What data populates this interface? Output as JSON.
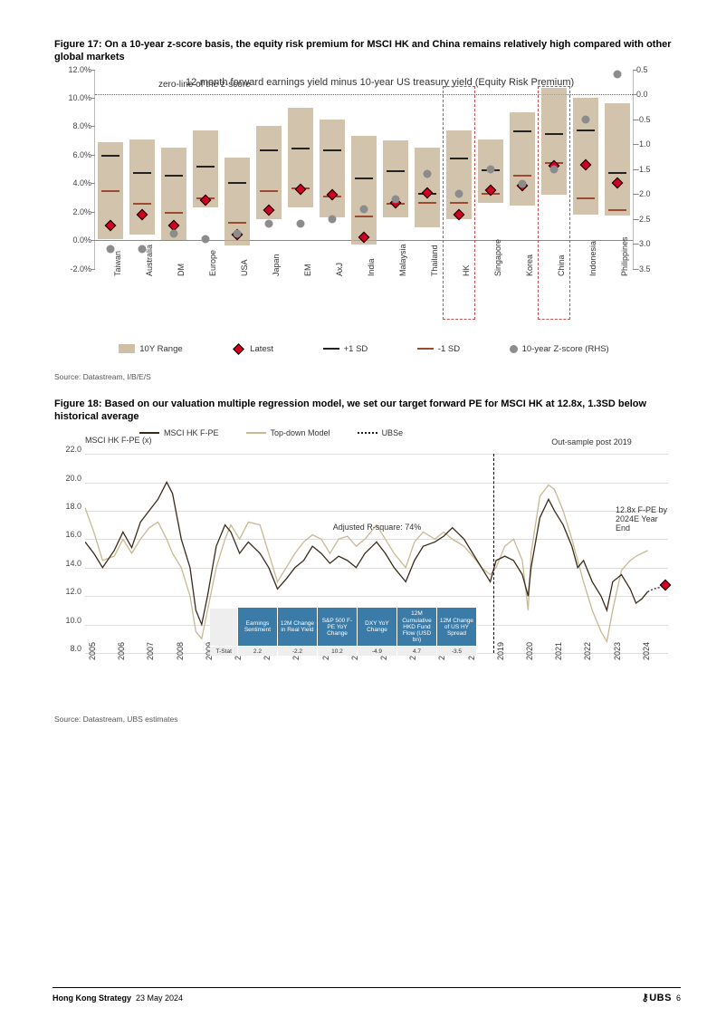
{
  "figure17": {
    "title": "Figure 17: On a 10-year z-score basis, the equity risk premium for MSCI HK and China remains relatively high compared with other global markets",
    "chart_title": "12-month forward earnings yield minus 10-year US treasury yield (Equity Risk Premium)",
    "zero_label": "zero-line of the z-score",
    "y_left": {
      "min": -2,
      "max": 12,
      "step": 2,
      "suffix": "%"
    },
    "y_right": {
      "min": -3.5,
      "max": 0.5,
      "step": 0.5,
      "zero_at_left_pct": 8.5
    },
    "colors": {
      "range_bar": "#c3af91",
      "latest": "#d00020",
      "sd_plus": "#222222",
      "sd_minus": "#9c4a30",
      "zdot": "#8c8c8c",
      "highlight_box": "#c0504d"
    },
    "legend": {
      "range": "10Y Range",
      "latest": "Latest",
      "sd_plus": "+1 SD",
      "sd_minus": "-1 SD",
      "zscore": "10-year Z-score (RHS)"
    },
    "categories": [
      {
        "label": "Taiwan",
        "range": [
          0.1,
          6.9
        ],
        "sdp": 6.0,
        "sdm": 3.5,
        "latest": 1.0,
        "z": -3.1,
        "highlight": false
      },
      {
        "label": "Australia",
        "range": [
          0.4,
          7.1
        ],
        "sdp": 4.8,
        "sdm": 2.6,
        "latest": 1.8,
        "z": -3.1,
        "highlight": false
      },
      {
        "label": "DM",
        "range": [
          0.0,
          6.5
        ],
        "sdp": 4.6,
        "sdm": 2.0,
        "latest": 1.0,
        "z": -2.8,
        "highlight": false
      },
      {
        "label": "Europe",
        "range": [
          2.3,
          7.7
        ],
        "sdp": 5.2,
        "sdm": 3.0,
        "latest": 2.8,
        "z": -2.9,
        "highlight": false
      },
      {
        "label": "USA",
        "range": [
          -0.4,
          5.8
        ],
        "sdp": 4.1,
        "sdm": 1.3,
        "latest": 0.4,
        "z": -2.8,
        "highlight": false
      },
      {
        "label": "Japan",
        "range": [
          1.5,
          8.0
        ],
        "sdp": 6.4,
        "sdm": 3.5,
        "latest": 2.1,
        "z": -2.6,
        "highlight": false
      },
      {
        "label": "EM",
        "range": [
          2.3,
          9.3
        ],
        "sdp": 6.5,
        "sdm": 3.7,
        "latest": 3.6,
        "z": -2.6,
        "highlight": false
      },
      {
        "label": "AxJ",
        "range": [
          1.6,
          8.5
        ],
        "sdp": 6.4,
        "sdm": 3.1,
        "latest": 3.2,
        "z": -2.5,
        "highlight": false
      },
      {
        "label": "India",
        "range": [
          -0.3,
          7.3
        ],
        "sdp": 4.4,
        "sdm": 1.7,
        "latest": 0.2,
        "z": -2.3,
        "highlight": false
      },
      {
        "label": "Malaysia",
        "range": [
          1.6,
          7.0
        ],
        "sdp": 4.9,
        "sdm": 2.6,
        "latest": 2.6,
        "z": -2.1,
        "highlight": false
      },
      {
        "label": "Thailand",
        "range": [
          0.9,
          6.5
        ],
        "sdp": 3.3,
        "sdm": 2.7,
        "latest": 3.3,
        "z": -1.6,
        "highlight": false
      },
      {
        "label": "HK",
        "range": [
          1.5,
          7.7
        ],
        "sdp": 5.8,
        "sdm": 2.7,
        "latest": 1.8,
        "z": -2.0,
        "highlight": true
      },
      {
        "label": "Singapore",
        "range": [
          2.6,
          7.1
        ],
        "sdp": 5.0,
        "sdm": 3.3,
        "latest": 3.5,
        "z": -1.5,
        "highlight": false
      },
      {
        "label": "Korea",
        "range": [
          2.4,
          9.0
        ],
        "sdp": 7.7,
        "sdm": 4.6,
        "latest": 3.8,
        "z": -1.8,
        "highlight": false
      },
      {
        "label": "China",
        "range": [
          3.2,
          10.7
        ],
        "sdp": 7.5,
        "sdm": 5.5,
        "latest": 5.2,
        "z": -1.5,
        "highlight": true
      },
      {
        "label": "Indonesia",
        "range": [
          1.8,
          10.0
        ],
        "sdp": 7.8,
        "sdm": 3.0,
        "latest": 5.3,
        "z": -0.5,
        "highlight": false
      },
      {
        "label": "Philippines",
        "range": [
          1.7,
          9.6
        ],
        "sdp": 4.8,
        "sdm": 2.2,
        "latest": 4.0,
        "z": 0.4,
        "highlight": false
      }
    ],
    "source": "Source: Datastream, I/B/E/S"
  },
  "figure18": {
    "title": "Figure 18: Based on our valuation multiple regression model, we set our target forward PE for MSCI HK at 12.8x, 1.3SD below historical average",
    "y_title": "MSCI HK F-PE (x)",
    "legend": {
      "s1": "MSCI HK F-PE",
      "s2": "Top-down Model",
      "s3": "UBSe"
    },
    "y": {
      "min": 8,
      "max": 22,
      "step": 2
    },
    "x_years": [
      2005,
      2006,
      2007,
      2008,
      2009,
      2010,
      2011,
      2012,
      2013,
      2014,
      2015,
      2016,
      2017,
      2018,
      2019,
      2020,
      2021,
      2022,
      2023,
      2024
    ],
    "annot_rsq": "Adjusted R-square: 74%",
    "annot_out": "Out-sample post 2019",
    "annot_target": "12.8x F-PE by 2024E Year End",
    "vdash_year": 2019,
    "target_point": {
      "x_year": 2024.9,
      "y": 12.8
    },
    "colors": {
      "s1": "#3a2a1a",
      "s2": "#c9b993",
      "grid": "#dddddd",
      "target": "#d00020"
    },
    "series1": [
      [
        2005.0,
        15.8
      ],
      [
        2005.3,
        15.0
      ],
      [
        2005.6,
        14.0
      ],
      [
        2006.0,
        15.2
      ],
      [
        2006.3,
        16.5
      ],
      [
        2006.6,
        15.4
      ],
      [
        2006.9,
        17.2
      ],
      [
        2007.2,
        18.0
      ],
      [
        2007.5,
        18.8
      ],
      [
        2007.8,
        20.0
      ],
      [
        2008.0,
        19.2
      ],
      [
        2008.3,
        16.0
      ],
      [
        2008.6,
        14.0
      ],
      [
        2008.8,
        11.0
      ],
      [
        2009.0,
        10.0
      ],
      [
        2009.2,
        12.0
      ],
      [
        2009.5,
        15.5
      ],
      [
        2009.8,
        17.0
      ],
      [
        2010.0,
        16.5
      ],
      [
        2010.3,
        15.0
      ],
      [
        2010.6,
        15.8
      ],
      [
        2011.0,
        15.0
      ],
      [
        2011.3,
        14.0
      ],
      [
        2011.6,
        12.5
      ],
      [
        2011.9,
        13.2
      ],
      [
        2012.2,
        14.0
      ],
      [
        2012.5,
        14.5
      ],
      [
        2012.8,
        15.5
      ],
      [
        2013.1,
        15.0
      ],
      [
        2013.4,
        14.3
      ],
      [
        2013.7,
        14.8
      ],
      [
        2014.0,
        14.5
      ],
      [
        2014.3,
        14.0
      ],
      [
        2014.6,
        15.0
      ],
      [
        2015.0,
        15.8
      ],
      [
        2015.3,
        15.0
      ],
      [
        2015.6,
        14.0
      ],
      [
        2016.0,
        13.0
      ],
      [
        2016.3,
        14.5
      ],
      [
        2016.6,
        15.5
      ],
      [
        2017.0,
        15.8
      ],
      [
        2017.3,
        16.2
      ],
      [
        2017.6,
        16.8
      ],
      [
        2018.0,
        16.0
      ],
      [
        2018.3,
        15.0
      ],
      [
        2018.6,
        14.0
      ],
      [
        2018.9,
        13.0
      ],
      [
        2019.1,
        14.5
      ],
      [
        2019.4,
        14.8
      ],
      [
        2019.7,
        14.5
      ],
      [
        2020.0,
        13.5
      ],
      [
        2020.2,
        12.0
      ],
      [
        2020.3,
        14.0
      ],
      [
        2020.6,
        17.5
      ],
      [
        2020.9,
        18.8
      ],
      [
        2021.1,
        18.0
      ],
      [
        2021.4,
        17.0
      ],
      [
        2021.7,
        15.5
      ],
      [
        2021.9,
        14.0
      ],
      [
        2022.1,
        14.5
      ],
      [
        2022.4,
        13.0
      ],
      [
        2022.7,
        12.0
      ],
      [
        2022.9,
        11.0
      ],
      [
        2023.1,
        13.0
      ],
      [
        2023.4,
        13.5
      ],
      [
        2023.7,
        12.5
      ],
      [
        2023.9,
        11.5
      ],
      [
        2024.1,
        11.8
      ],
      [
        2024.3,
        12.3
      ]
    ],
    "series2": [
      [
        2005.0,
        18.2
      ],
      [
        2005.3,
        16.5
      ],
      [
        2005.6,
        14.5
      ],
      [
        2006.0,
        14.8
      ],
      [
        2006.3,
        16.0
      ],
      [
        2006.6,
        15.0
      ],
      [
        2006.9,
        16.0
      ],
      [
        2007.2,
        16.8
      ],
      [
        2007.5,
        17.2
      ],
      [
        2007.8,
        16.0
      ],
      [
        2008.0,
        15.0
      ],
      [
        2008.3,
        14.0
      ],
      [
        2008.6,
        12.0
      ],
      [
        2008.8,
        9.5
      ],
      [
        2009.0,
        9.0
      ],
      [
        2009.2,
        11.0
      ],
      [
        2009.5,
        14.0
      ],
      [
        2009.8,
        16.0
      ],
      [
        2010.0,
        17.0
      ],
      [
        2010.3,
        16.0
      ],
      [
        2010.6,
        17.2
      ],
      [
        2011.0,
        17.0
      ],
      [
        2011.3,
        15.0
      ],
      [
        2011.6,
        13.0
      ],
      [
        2011.9,
        14.0
      ],
      [
        2012.2,
        15.0
      ],
      [
        2012.5,
        15.8
      ],
      [
        2012.8,
        16.3
      ],
      [
        2013.1,
        16.0
      ],
      [
        2013.4,
        15.0
      ],
      [
        2013.7,
        16.0
      ],
      [
        2014.0,
        16.2
      ],
      [
        2014.3,
        15.5
      ],
      [
        2014.6,
        16.0
      ],
      [
        2015.0,
        17.0
      ],
      [
        2015.3,
        16.0
      ],
      [
        2015.6,
        15.0
      ],
      [
        2016.0,
        14.0
      ],
      [
        2016.3,
        15.8
      ],
      [
        2016.6,
        16.5
      ],
      [
        2017.0,
        16.0
      ],
      [
        2017.3,
        16.5
      ],
      [
        2017.6,
        16.0
      ],
      [
        2018.0,
        15.5
      ],
      [
        2018.3,
        14.8
      ],
      [
        2018.6,
        14.0
      ],
      [
        2018.9,
        13.5
      ],
      [
        2019.1,
        14.0
      ],
      [
        2019.4,
        15.5
      ],
      [
        2019.7,
        16.0
      ],
      [
        2020.0,
        14.5
      ],
      [
        2020.2,
        11.0
      ],
      [
        2020.3,
        15.0
      ],
      [
        2020.6,
        19.0
      ],
      [
        2020.9,
        19.8
      ],
      [
        2021.1,
        19.5
      ],
      [
        2021.4,
        18.0
      ],
      [
        2021.7,
        16.0
      ],
      [
        2021.9,
        14.5
      ],
      [
        2022.1,
        13.0
      ],
      [
        2022.4,
        11.0
      ],
      [
        2022.7,
        9.5
      ],
      [
        2022.9,
        8.8
      ],
      [
        2023.1,
        11.0
      ],
      [
        2023.4,
        13.8
      ],
      [
        2023.7,
        14.5
      ],
      [
        2023.9,
        14.8
      ],
      [
        2024.1,
        15.0
      ],
      [
        2024.3,
        15.2
      ]
    ],
    "ubse": [
      [
        2024.3,
        12.3
      ],
      [
        2024.5,
        12.5
      ],
      [
        2024.7,
        12.6
      ],
      [
        2024.9,
        12.8
      ]
    ],
    "regression_table": {
      "headers": [
        "Earnings Sentiment",
        "12M Change in Real Yield",
        "S&P 500 F-PE YoY Change",
        "DXY YoY Change",
        "12M Cumulative HKD Fund Flow (USD bn)",
        "12M Change of US HY Spread"
      ],
      "row_label": "T-Stat",
      "values": [
        "2.2",
        "-2.2",
        "10.2",
        "-4.9",
        "4.7",
        "-3.5"
      ]
    },
    "source": "Source: Datastream, UBS estimates"
  },
  "footer": {
    "title": "Hong Kong Strategy",
    "date": "23 May 2024",
    "brand": "UBS",
    "page": "6"
  }
}
